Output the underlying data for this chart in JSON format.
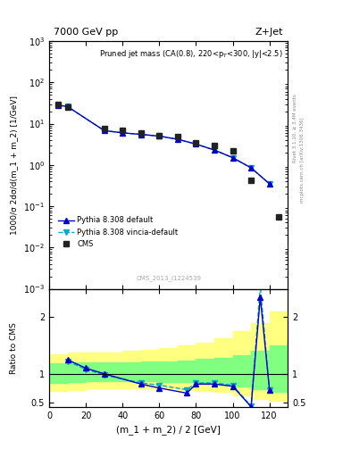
{
  "title_left": "7000 GeV pp",
  "title_right": "Z+Jet",
  "plot_title": "Pruned jet mass (CA(0.8), 220<p$_T$<300, |y|<2.5)",
  "ylabel_main": "1000/σ 2dσ/d(m_1 + m_2) [1/GeV]",
  "ylabel_ratio": "Ratio to CMS",
  "xlabel": "(m_1 + m_2) / 2 [GeV]",
  "watermark": "CMS_2013_I1224539",
  "rivet_label": "Rivet 3.1.10, ≥ 3.4M events",
  "mcplots_label": "mcplots.cern.ch [arXiv:1306.3436]",
  "cms_x": [
    5,
    10,
    30,
    40,
    50,
    60,
    70,
    80,
    90,
    100,
    110,
    125
  ],
  "cms_y": [
    30,
    25,
    7.5,
    7.0,
    6.0,
    5.2,
    4.8,
    3.5,
    3.0,
    2.2,
    0.42,
    0.055
  ],
  "pythia_default_x": [
    5,
    10,
    30,
    40,
    50,
    60,
    70,
    80,
    90,
    100,
    110,
    120
  ],
  "pythia_default_y": [
    28,
    26,
    6.8,
    6.0,
    5.5,
    5.0,
    4.2,
    3.2,
    2.3,
    1.5,
    0.85,
    0.35
  ],
  "pythia_vincia_x": [
    5,
    10,
    30,
    40,
    50,
    60,
    70,
    80,
    90,
    100,
    110,
    120
  ],
  "pythia_vincia_y": [
    28,
    26,
    6.8,
    6.0,
    5.5,
    5.0,
    4.2,
    3.2,
    2.3,
    1.5,
    0.85,
    0.35
  ],
  "ratio_default_x": [
    10,
    20,
    30,
    50,
    60,
    75,
    80,
    90,
    100,
    110,
    115,
    120
  ],
  "ratio_default_y": [
    1.25,
    1.1,
    1.0,
    0.82,
    0.75,
    0.66,
    0.82,
    0.82,
    0.78,
    0.42,
    2.35,
    0.72
  ],
  "ratio_vincia_x": [
    10,
    20,
    30,
    50,
    60,
    75,
    80,
    90,
    100,
    110,
    115,
    120
  ],
  "ratio_vincia_y": [
    1.22,
    1.08,
    0.98,
    0.84,
    0.8,
    0.72,
    0.84,
    0.84,
    0.8,
    0.43,
    2.55,
    0.72
  ],
  "band_x_edges": [
    0,
    10,
    20,
    30,
    40,
    50,
    60,
    70,
    80,
    90,
    100,
    110,
    120,
    130
  ],
  "band_yellow_low": [
    0.7,
    0.72,
    0.74,
    0.74,
    0.74,
    0.74,
    0.74,
    0.72,
    0.7,
    0.68,
    0.62,
    0.56,
    0.52,
    0.5
  ],
  "band_yellow_high": [
    1.35,
    1.38,
    1.38,
    1.38,
    1.4,
    1.42,
    1.46,
    1.5,
    1.55,
    1.62,
    1.75,
    1.9,
    2.1,
    2.3
  ],
  "band_green_low": [
    0.84,
    0.86,
    0.87,
    0.87,
    0.87,
    0.87,
    0.86,
    0.85,
    0.84,
    0.82,
    0.78,
    0.73,
    0.68,
    0.65
  ],
  "band_green_high": [
    1.18,
    1.2,
    1.2,
    1.2,
    1.2,
    1.21,
    1.22,
    1.24,
    1.26,
    1.28,
    1.33,
    1.4,
    1.5,
    1.6
  ],
  "ylim_main": [
    0.001,
    1000.0
  ],
  "ylim_ratio": [
    0.42,
    2.5
  ],
  "xlim": [
    0,
    130
  ],
  "color_default": "#0000cc",
  "color_vincia": "#00aacc",
  "color_cms": "#222222",
  "color_yellow": "#ffff80",
  "color_green": "#80ff80"
}
